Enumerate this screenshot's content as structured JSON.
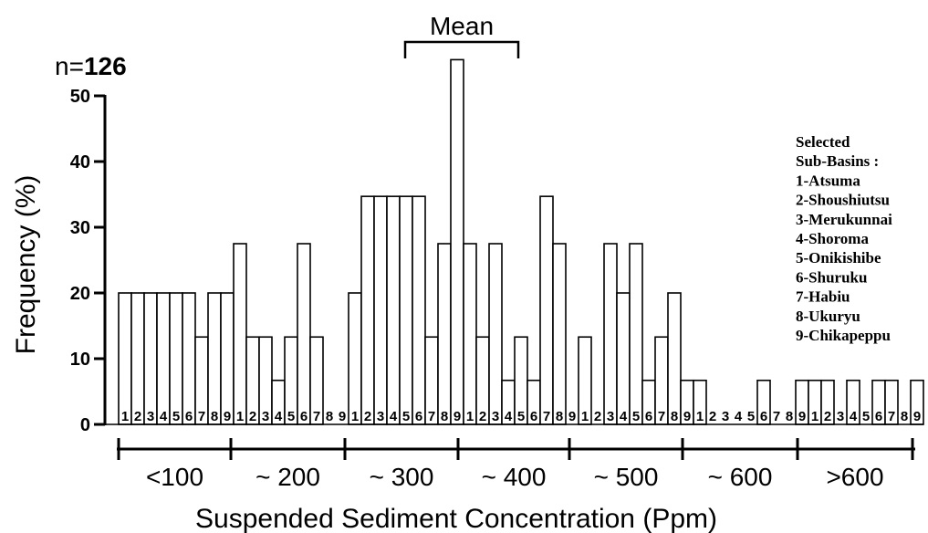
{
  "chart_data": {
    "type": "bar",
    "n_label": "n=",
    "n_value": "126",
    "mean_label": "Mean",
    "ylabel": "Frequency (%)",
    "xlabel": "Suspended Sediment Concentration (Ppm)",
    "ylim": [
      0,
      55
    ],
    "yticks": [
      0,
      10,
      20,
      30,
      40,
      50
    ],
    "yticks_labels": [
      "0",
      "10",
      "20",
      "30",
      "40",
      "50"
    ],
    "groups": [
      {
        "label": "<100",
        "values": [
          20,
          20,
          20,
          20,
          20,
          20,
          13.3,
          20,
          20
        ]
      },
      {
        "label": "~ 200",
        "values": [
          27.5,
          13.3,
          13.3,
          6.7,
          13.3,
          27.5,
          13.3,
          0,
          0
        ]
      },
      {
        "label": "~ 300",
        "values": [
          20,
          34.7,
          34.7,
          34.7,
          34.7,
          34.7,
          13.3,
          27.5,
          55.5
        ]
      },
      {
        "label": "~ 400",
        "values": [
          27.5,
          13.3,
          27.5,
          6.7,
          13.3,
          6.7,
          34.7,
          27.5,
          0
        ]
      },
      {
        "label": "~ 500",
        "values": [
          13.3,
          0,
          27.5,
          20,
          27.5,
          6.7,
          13.3,
          20,
          6.7
        ]
      },
      {
        "label": "~ 600",
        "values": [
          6.7,
          0,
          0,
          0,
          0,
          6.7,
          0,
          0,
          6.7
        ]
      },
      {
        "label": ">600",
        "values": [
          6.7,
          6.7,
          0,
          6.7,
          0,
          6.7,
          6.7,
          0,
          6.7
        ]
      }
    ],
    "bar_labels": [
      "1",
      "2",
      "3",
      "4",
      "5",
      "6",
      "7",
      "8",
      "9"
    ],
    "legend": {
      "title_lines": [
        "Selected",
        "Sub-Basins :"
      ],
      "entries": [
        "1-Atsuma",
        "2-Shoushiutsu",
        "3-Merukunnai",
        "4-Shoroma",
        "5-Onikishibe",
        "6-Shuruku",
        "7-Habiu",
        "8-Ukuryu",
        "9-Chikapeppu"
      ],
      "placement": "right"
    },
    "grid": false
  }
}
